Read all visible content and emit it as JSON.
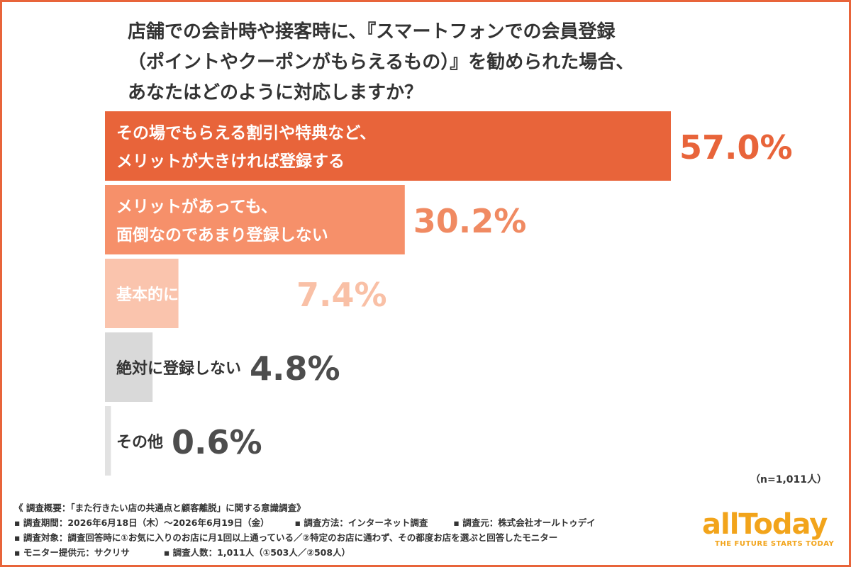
{
  "title_lines": [
    "店舗での会計時や接客時に、『スマートフォンでの会員登録",
    "（ポイントやクーポンがもらえるもの）』を勧められた場合、",
    "あなたはどのように対応しますか？"
  ],
  "chart_data": {
    "type": "bar",
    "orientation": "horizontal",
    "categories": [
      "その場でもらえる割引や特典など、\nメリットが大きければ登録する",
      "メリットがあっても、\n面倒なのであまり登録しない",
      "基本的にいつも登録する",
      "絶対に登録しない",
      "その他"
    ],
    "values": [
      57.0,
      30.2,
      7.4,
      4.8,
      0.6
    ],
    "value_labels": [
      "57.0%",
      "30.2%",
      "7.4%",
      "4.8%",
      "0.6%"
    ],
    "xlim": [
      0,
      100
    ],
    "bar_colors": [
      "#E8643A",
      "#F6906A",
      "#FAC4AD",
      "#D9D9D9",
      "#E2E2E2"
    ],
    "value_colors": [
      "#E8643A",
      "#F08A62",
      "#F9C0A6",
      "#4D4D4D",
      "#4D4D4D"
    ],
    "grid": false,
    "legend": "none"
  },
  "sample_note": "（n=1,011人）",
  "survey_notes": {
    "line1": "《 調査概要：「また行きたい店の共通点と顧客離脱」に関する意識調査》",
    "period": "▪ 調査期間：2026年6月18日（木）〜2026年6月19日（金）",
    "method": "▪ 調査方法：インターネット調査",
    "source": "▪ 調査元：株式会社オールトゥデイ",
    "target": "▪ 調査対象：調査回答時に①お気に入りのお店に月1回以上通っている／②特定のお店に通わず、その都度お店を選ぶと回答したモニター",
    "provider": "▪ モニター提供元：サクリサ",
    "count": "▪ 調査人数：1,011人（①503人／②508人）"
  },
  "logo": {
    "wordmark": "allToday",
    "tagline": "THE FUTURE STARTS TODAY",
    "color": "#F2A41B"
  }
}
